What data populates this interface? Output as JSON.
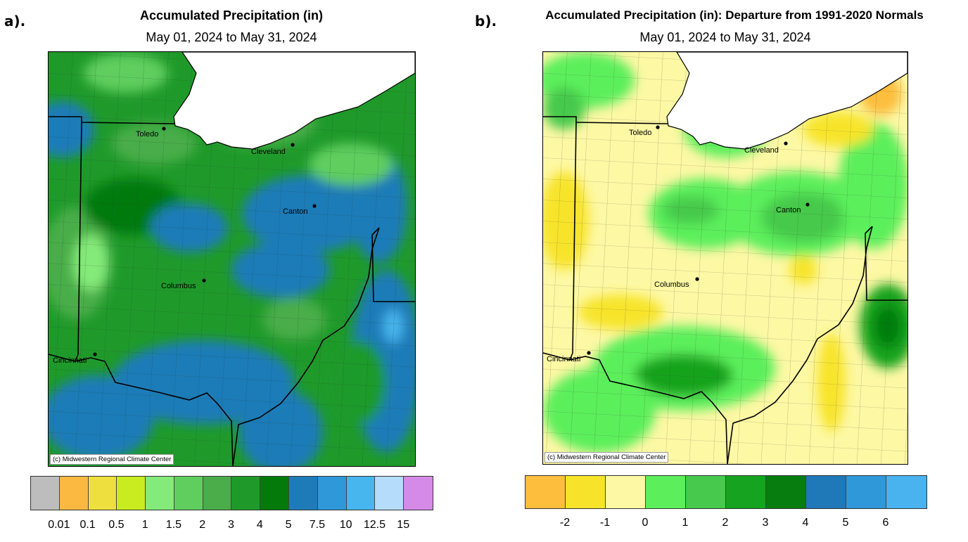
{
  "panels": [
    {
      "label": "a).",
      "title": "Accumulated Precipitation (in)",
      "subtitle": "May 01, 2024 to May 31, 2024",
      "credit": "(c) Midwestern Regional Climate Center",
      "cities": [
        "Toledo",
        "Cleveland",
        "Canton",
        "Columbus",
        "Cincinnati"
      ],
      "legend": {
        "colors": [
          "#bdbdbd",
          "#fcb941",
          "#efdf3e",
          "#c8ec1f",
          "#84ea79",
          "#5fce5e",
          "#4aad4a",
          "#1f9a2a",
          "#037a0a",
          "#1f7bb8",
          "#2e98d8",
          "#47b5ee",
          "#b5dcfa",
          "#d58ae8"
        ],
        "ticks": [
          "0.01",
          "0.1",
          "0.5",
          "1",
          "1.5",
          "2",
          "3",
          "4",
          "5",
          "7.5",
          "10",
          "12.5",
          "15"
        ]
      }
    },
    {
      "label": "b).",
      "title": "Accumulated Precipitation (in): Departure from 1991-2020 Normals",
      "subtitle": "May 01, 2024 to May 31, 2024",
      "credit": "(c) Midwestern Regional Climate Center",
      "cities": [
        "Toledo",
        "Cleveland",
        "Canton",
        "Columbus",
        "Cincinnati"
      ],
      "legend": {
        "colors": [
          "#fcbe3c",
          "#f7e42a",
          "#fdf8a4",
          "#5cef5b",
          "#46c94c",
          "#16a31f",
          "#067d0e",
          "#1f78b8",
          "#2e98d8",
          "#48b3ee"
        ],
        "ticks": [
          "-2",
          "-1",
          "0",
          "1",
          "2",
          "3",
          "4",
          "5",
          "6"
        ]
      }
    }
  ],
  "colors": {
    "lake": "#ffffff",
    "boundary": "#000000",
    "county": "#303030"
  }
}
